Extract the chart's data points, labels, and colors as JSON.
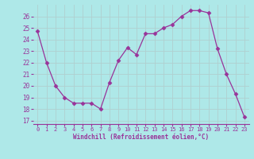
{
  "x": [
    0,
    1,
    2,
    3,
    4,
    5,
    6,
    7,
    8,
    9,
    10,
    11,
    12,
    13,
    14,
    15,
    16,
    17,
    18,
    19,
    20,
    21,
    22,
    23
  ],
  "y": [
    24.7,
    22.0,
    20.0,
    19.0,
    18.5,
    18.5,
    18.5,
    18.0,
    20.3,
    22.2,
    23.3,
    22.7,
    24.5,
    24.5,
    25.0,
    25.3,
    26.0,
    26.5,
    26.5,
    26.3,
    23.2,
    21.0,
    19.3,
    17.3
  ],
  "line_color": "#993399",
  "marker": "D",
  "marker_size": 2.5,
  "bg_color": "#aee8e8",
  "grid_color": "#b8d8d8",
  "xlabel": "Windchill (Refroidissement éolien,°C)",
  "ylabel_ticks": [
    17,
    18,
    19,
    20,
    21,
    22,
    23,
    24,
    25,
    26
  ],
  "xtick_labels": [
    "0",
    "1",
    "2",
    "3",
    "4",
    "5",
    "6",
    "7",
    "8",
    "9",
    "10",
    "11",
    "12",
    "13",
    "14",
    "15",
    "16",
    "17",
    "18",
    "19",
    "20",
    "21",
    "22",
    "23"
  ],
  "ylim": [
    16.7,
    27.0
  ],
  "xlim": [
    -0.5,
    23.5
  ],
  "tick_color": "#993399",
  "label_color": "#993399",
  "grid_line_color": "#c8e0e0",
  "spine_color": "#993399"
}
